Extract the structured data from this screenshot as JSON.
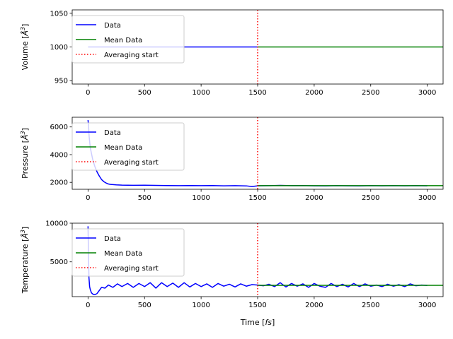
{
  "colors": {
    "data": "#0000ff",
    "mean": "#008000",
    "averaging": "#ff0000",
    "legend_border": "#cccccc"
  },
  "x_axis_label": "Time [$fs$]",
  "chart_data": [
    {
      "type": "line",
      "ylabel": "Volume [$\\AA^3$]",
      "xlim": [
        -140,
        3140
      ],
      "ylim": [
        945,
        1055
      ],
      "x_ticks": [
        0,
        500,
        1000,
        1500,
        2000,
        2500,
        3000
      ],
      "y_ticks": [
        950,
        1000,
        1050
      ],
      "legend": {
        "placement": "upper-left",
        "entries": [
          "Data",
          "Mean Data",
          "Averaging start"
        ]
      },
      "averaging_start": 1500,
      "series": [
        {
          "name": "Data",
          "color": "#0000ff",
          "x": [
            0,
            1500
          ],
          "y": [
            1000,
            1000
          ]
        },
        {
          "name": "Mean Data",
          "color": "#008000",
          "x": [
            1500,
            3140
          ],
          "y": [
            1000,
            1000
          ]
        }
      ]
    },
    {
      "type": "line",
      "ylabel": "Pressure [$\\AA^3$]",
      "xlim": [
        -140,
        3140
      ],
      "ylim": [
        1500,
        6700
      ],
      "x_ticks": [
        0,
        500,
        1000,
        1500,
        2000,
        2500,
        3000
      ],
      "y_ticks": [
        2000,
        4000,
        6000
      ],
      "legend": {
        "placement": "upper-left",
        "entries": [
          "Data",
          "Mean Data",
          "Averaging start"
        ]
      },
      "averaging_start": 1500,
      "series": [
        {
          "name": "Data",
          "color": "#0000ff",
          "x": [
            0,
            5,
            10,
            20,
            40,
            60,
            80,
            100,
            120,
            140,
            160,
            180,
            200,
            250,
            300,
            350,
            400,
            500,
            600,
            700,
            800,
            900,
            1000,
            1100,
            1200,
            1300,
            1400,
            1450,
            1500,
            1600,
            1700,
            1800,
            1900,
            2000,
            2100,
            2200,
            2300,
            2400,
            2500,
            2600,
            2700,
            2800,
            2900,
            3000
          ],
          "y": [
            6500,
            6000,
            5300,
            4500,
            3700,
            3150,
            2750,
            2450,
            2200,
            2050,
            1950,
            1880,
            1850,
            1820,
            1800,
            1790,
            1785,
            1790,
            1780,
            1770,
            1760,
            1770,
            1760,
            1770,
            1750,
            1760,
            1745,
            1700,
            1750,
            1760,
            1780,
            1760,
            1770,
            1750,
            1740,
            1760,
            1750,
            1740,
            1760,
            1750,
            1760,
            1750,
            1760,
            1750
          ]
        },
        {
          "name": "Mean Data",
          "color": "#008000",
          "x": [
            1500,
            3140
          ],
          "y": [
            1760,
            1760
          ]
        }
      ]
    },
    {
      "type": "line",
      "ylabel": "Temperature [$\\AA^3$]",
      "xlim": [
        -140,
        3140
      ],
      "ylim": [
        500,
        10000
      ],
      "x_ticks": [
        0,
        500,
        1000,
        1500,
        2000,
        2500,
        3000
      ],
      "y_ticks": [
        5000,
        10000
      ],
      "legend": {
        "placement": "upper-left",
        "entries": [
          "Data",
          "Mean Data",
          "Averaging start"
        ]
      },
      "averaging_start": 1500,
      "series": [
        {
          "name": "Data",
          "color": "#0000ff",
          "x": [
            0,
            4,
            8,
            14,
            20,
            30,
            45,
            60,
            80,
            100,
            120,
            150,
            180,
            220,
            260,
            300,
            350,
            400,
            450,
            500,
            550,
            600,
            650,
            700,
            750,
            800,
            850,
            900,
            950,
            1000,
            1050,
            1100,
            1150,
            1200,
            1250,
            1300,
            1350,
            1400,
            1450,
            1500,
            1550,
            1600,
            1650,
            1700,
            1750,
            1800,
            1850,
            1900,
            1950,
            2000,
            2050,
            2100,
            2150,
            2200,
            2250,
            2300,
            2350,
            2400,
            2450,
            2500,
            2550,
            2600,
            2650,
            2700,
            2750,
            2800,
            2850,
            2900,
            2950,
            3000
          ],
          "y": [
            9600,
            6000,
            3000,
            1800,
            1400,
            1000,
            800,
            750,
            900,
            1300,
            1700,
            1600,
            2000,
            1700,
            2150,
            1800,
            2200,
            1700,
            2200,
            1800,
            2300,
            1600,
            2300,
            1800,
            2250,
            1700,
            2300,
            1750,
            2200,
            1800,
            2150,
            1700,
            2200,
            1850,
            2100,
            1750,
            2150,
            1850,
            2050,
            2000,
            1900,
            2100,
            1800,
            2300,
            1750,
            2200,
            1850,
            2150,
            1700,
            2200,
            1850,
            1700,
            2200,
            1800,
            2100,
            1750,
            2200,
            1800,
            2150,
            1850,
            2000,
            1800,
            2100,
            1850,
            2050,
            1800,
            2150,
            1900,
            2000,
            1950
          ]
        },
        {
          "name": "Mean Data",
          "color": "#008000",
          "x": [
            1500,
            3140
          ],
          "y": [
            1960,
            1960
          ]
        }
      ]
    }
  ]
}
